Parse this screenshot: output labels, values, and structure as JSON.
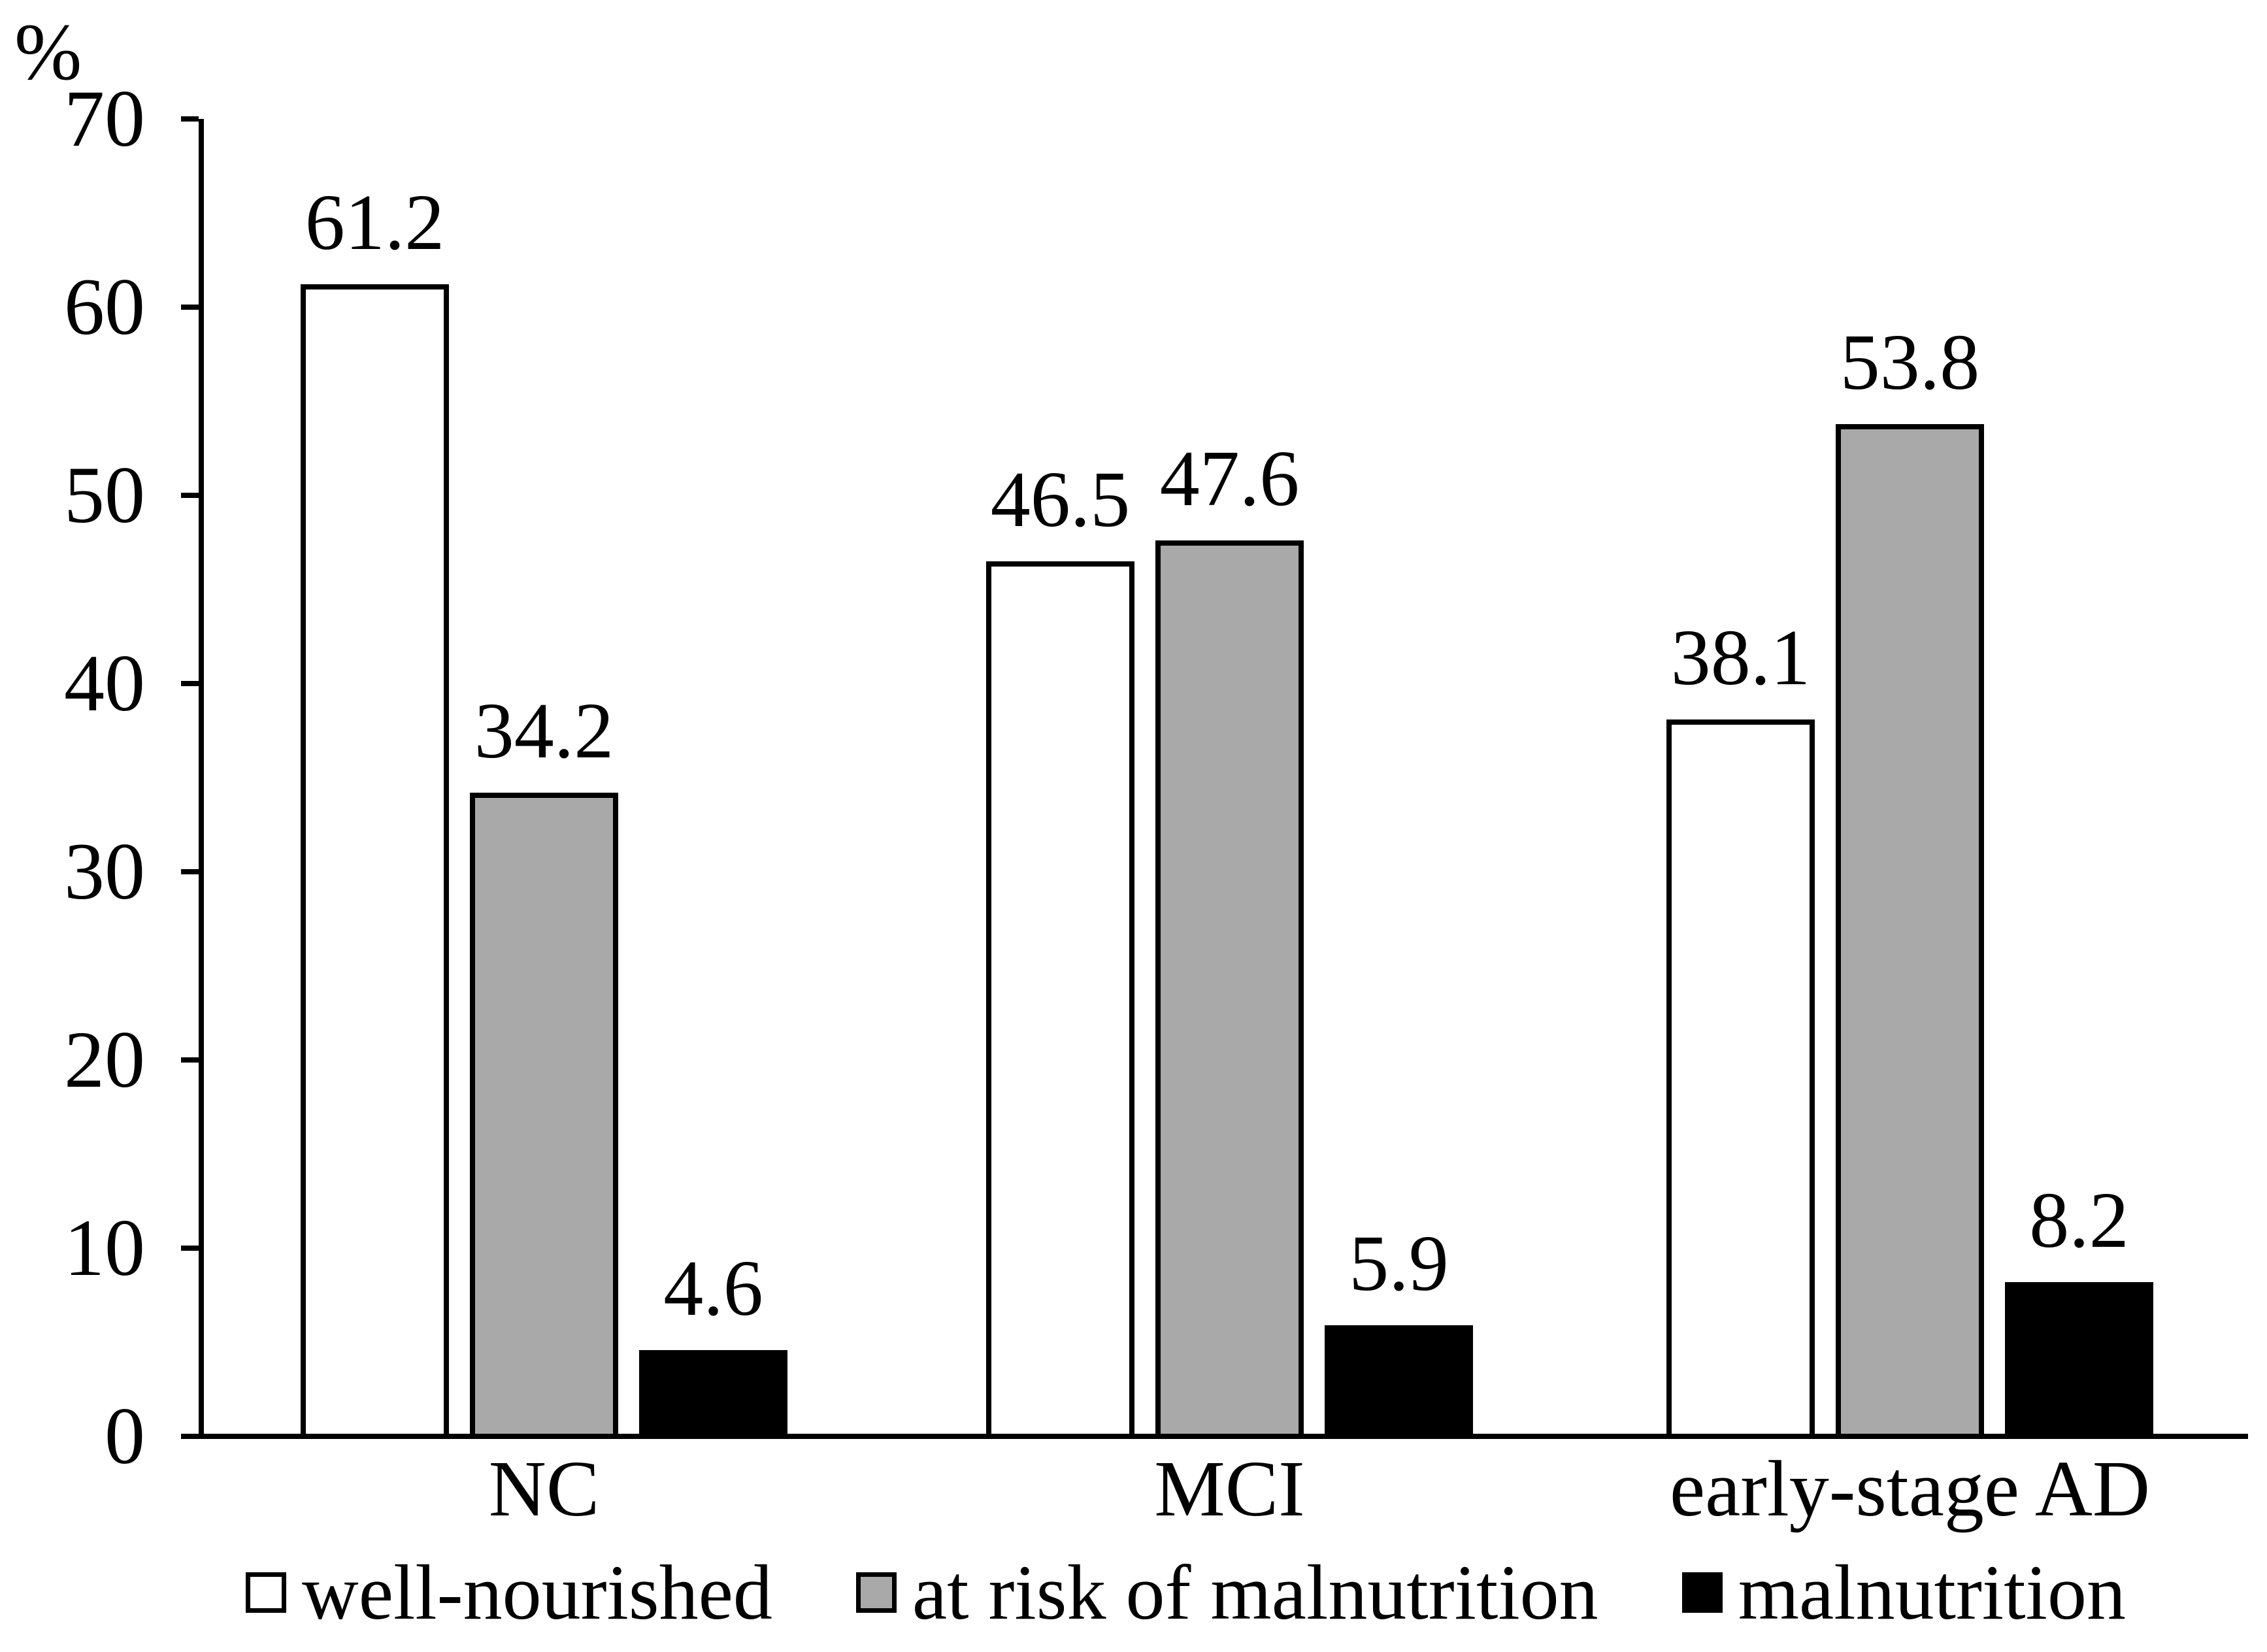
{
  "chart_data": {
    "type": "bar",
    "title": "",
    "ylabel": "%",
    "xlabel": "",
    "categories": [
      "NC",
      "MCI",
      "early-stage AD"
    ],
    "series": [
      {
        "name": "well-nourished",
        "values": [
          61.2,
          46.5,
          38.1
        ],
        "color": "#ffffff"
      },
      {
        "name": "at risk of malnutrition",
        "values": [
          34.2,
          47.6,
          53.8
        ],
        "color": "#a9a9a9"
      },
      {
        "name": "malnutrition",
        "values": [
          4.6,
          5.9,
          8.2
        ],
        "color": "#000000"
      }
    ],
    "ylim": [
      0,
      70
    ],
    "yticks": [
      0,
      10,
      20,
      30,
      40,
      50,
      60,
      70
    ],
    "grid": false,
    "legend_position": "bottom",
    "value_labels": true,
    "axis_color": "#000000"
  }
}
